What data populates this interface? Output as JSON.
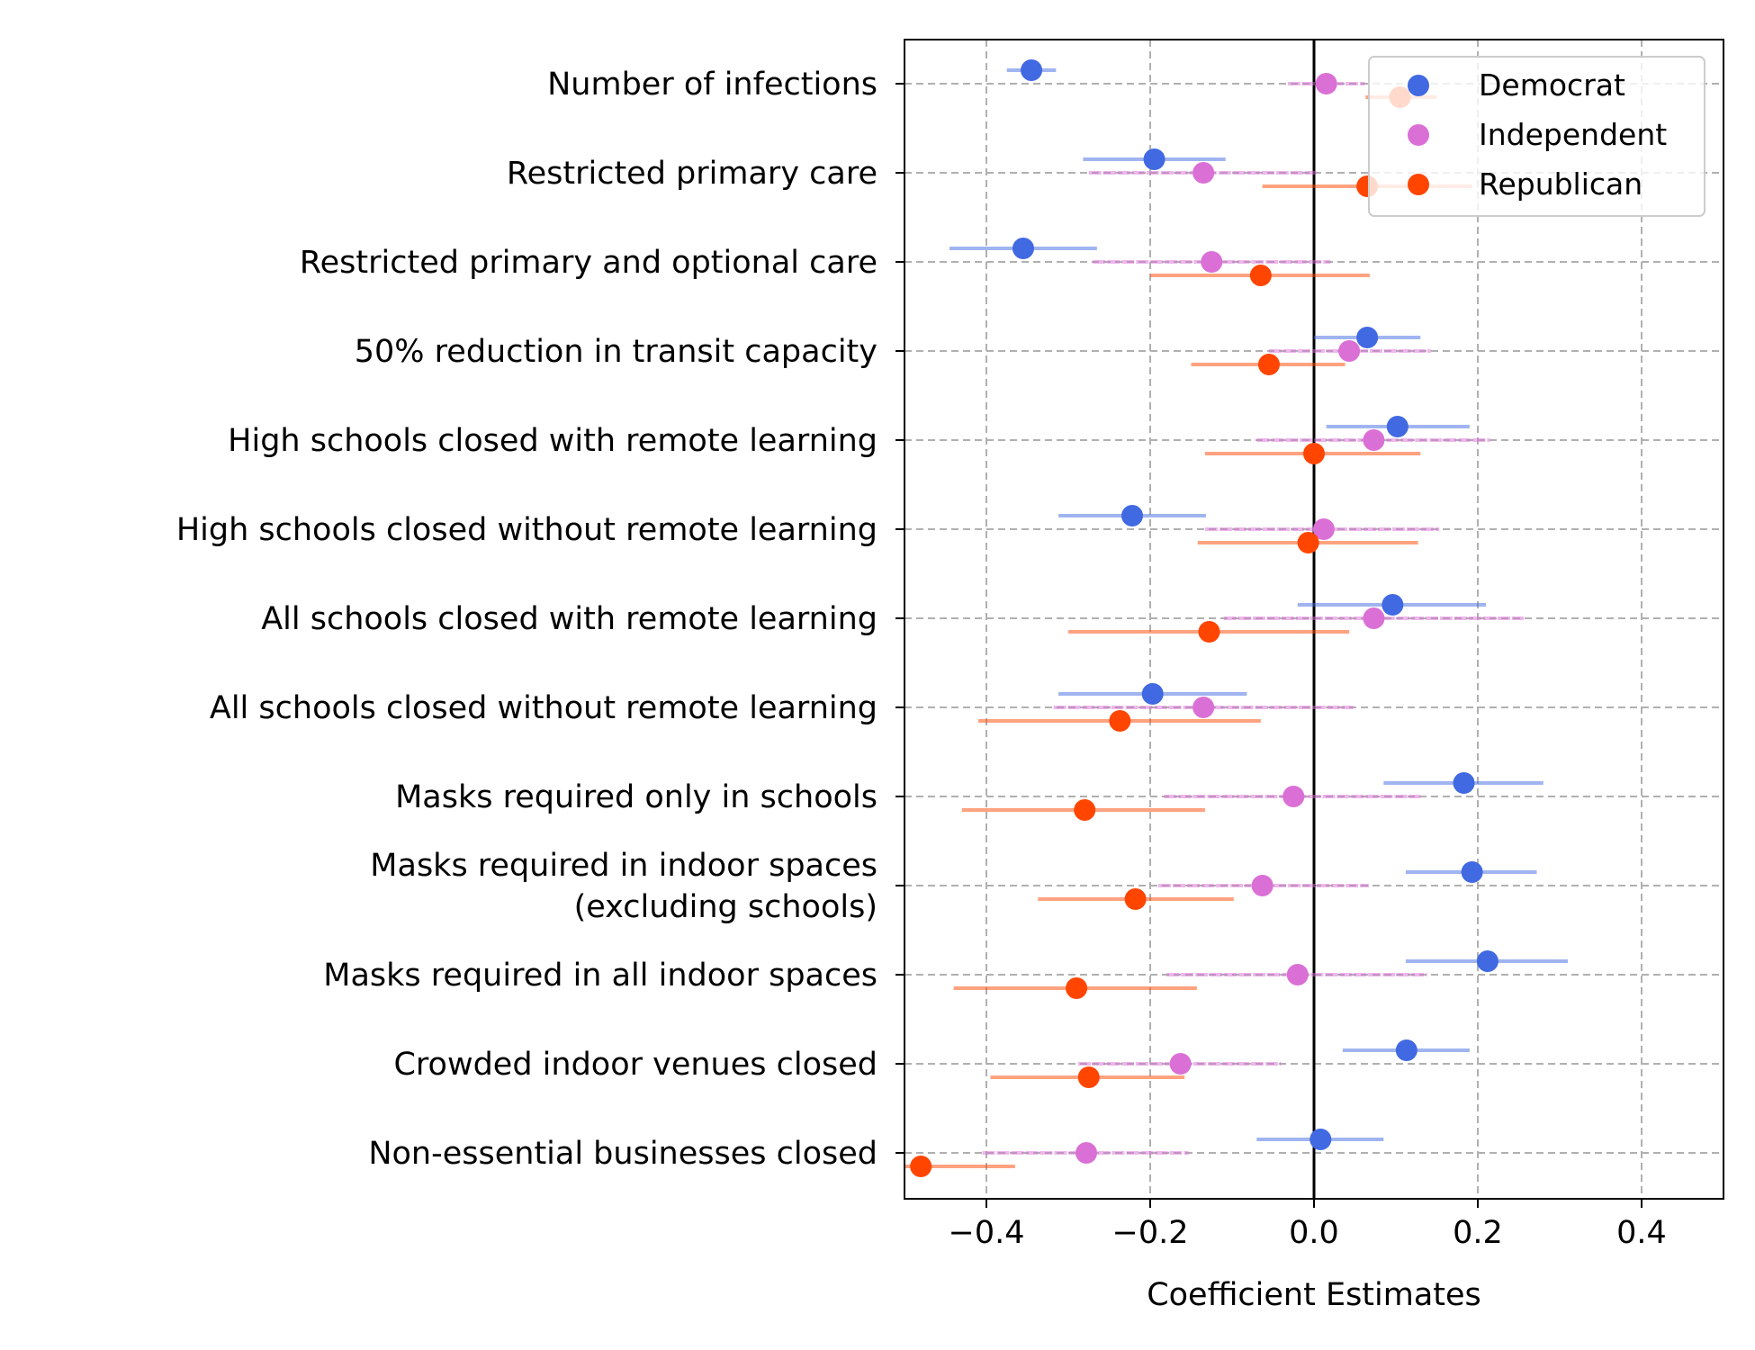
{
  "chart_data": {
    "type": "scatter",
    "orientation": "horizontal",
    "title": "",
    "xlabel": "Coefficient Estimates",
    "ylabel": "",
    "xlim": [
      -0.5,
      0.5
    ],
    "xticks": [
      -0.4,
      -0.2,
      0.0,
      0.2,
      0.4
    ],
    "xtick_labels": [
      "−0.4",
      "−0.2",
      "0.0",
      "0.2",
      "0.4"
    ],
    "grid": true,
    "zero_line": 0,
    "legend_position": "top-right",
    "categories": [
      [
        "Number of infections"
      ],
      [
        "Restricted primary care"
      ],
      [
        "Restricted primary and optional care"
      ],
      [
        "50% reduction in transit capacity"
      ],
      [
        "High schools closed with remote learning"
      ],
      [
        "High schools closed without remote learning"
      ],
      [
        "All schools closed with remote learning"
      ],
      [
        "All schools closed without remote learning"
      ],
      [
        "Masks required only in schools"
      ],
      [
        "Masks required in indoor spaces",
        "(excluding schools)"
      ],
      [
        "Masks required in all indoor spaces"
      ],
      [
        "Crowded indoor venues closed"
      ],
      [
        "Non-essential businesses closed"
      ]
    ],
    "series": [
      {
        "name": "Democrat",
        "color": "#4169e1",
        "values": [
          -0.345,
          -0.195,
          -0.355,
          0.065,
          0.102,
          -0.222,
          0.096,
          -0.197,
          0.183,
          0.193,
          0.212,
          0.113,
          0.008
        ],
        "ci_low": [
          -0.375,
          -0.282,
          -0.445,
          0.0,
          0.015,
          -0.312,
          -0.02,
          -0.312,
          0.085,
          0.112,
          0.112,
          0.035,
          -0.07
        ],
        "ci_high": [
          -0.315,
          -0.108,
          -0.265,
          0.13,
          0.19,
          -0.132,
          0.21,
          -0.082,
          0.28,
          0.272,
          0.31,
          0.19,
          0.085
        ]
      },
      {
        "name": "Independent",
        "color": "#da70d6",
        "values": [
          0.015,
          -0.135,
          -0.125,
          0.043,
          0.073,
          0.012,
          0.073,
          -0.135,
          -0.025,
          -0.063,
          -0.02,
          -0.163,
          -0.278
        ],
        "ci_low": [
          -0.032,
          -0.275,
          -0.27,
          -0.055,
          -0.07,
          -0.133,
          -0.11,
          -0.318,
          -0.183,
          -0.19,
          -0.18,
          -0.288,
          -0.405
        ],
        "ci_high": [
          0.062,
          0.003,
          0.02,
          0.143,
          0.215,
          0.153,
          0.256,
          0.048,
          0.13,
          0.067,
          0.138,
          -0.04,
          -0.153
        ]
      },
      {
        "name": "Republican",
        "color": "#ff4500",
        "values": [
          0.105,
          0.065,
          -0.065,
          -0.055,
          0.0,
          -0.007,
          -0.128,
          -0.237,
          -0.28,
          -0.218,
          -0.29,
          -0.275,
          -0.48
        ],
        "ci_low": [
          0.063,
          -0.063,
          -0.2,
          -0.15,
          -0.133,
          -0.142,
          -0.3,
          -0.41,
          -0.43,
          -0.337,
          -0.44,
          -0.395,
          -0.5
        ],
        "ci_high": [
          0.15,
          0.193,
          0.068,
          0.038,
          0.13,
          0.127,
          0.043,
          -0.065,
          -0.133,
          -0.098,
          -0.143,
          -0.158,
          -0.365
        ]
      }
    ]
  }
}
